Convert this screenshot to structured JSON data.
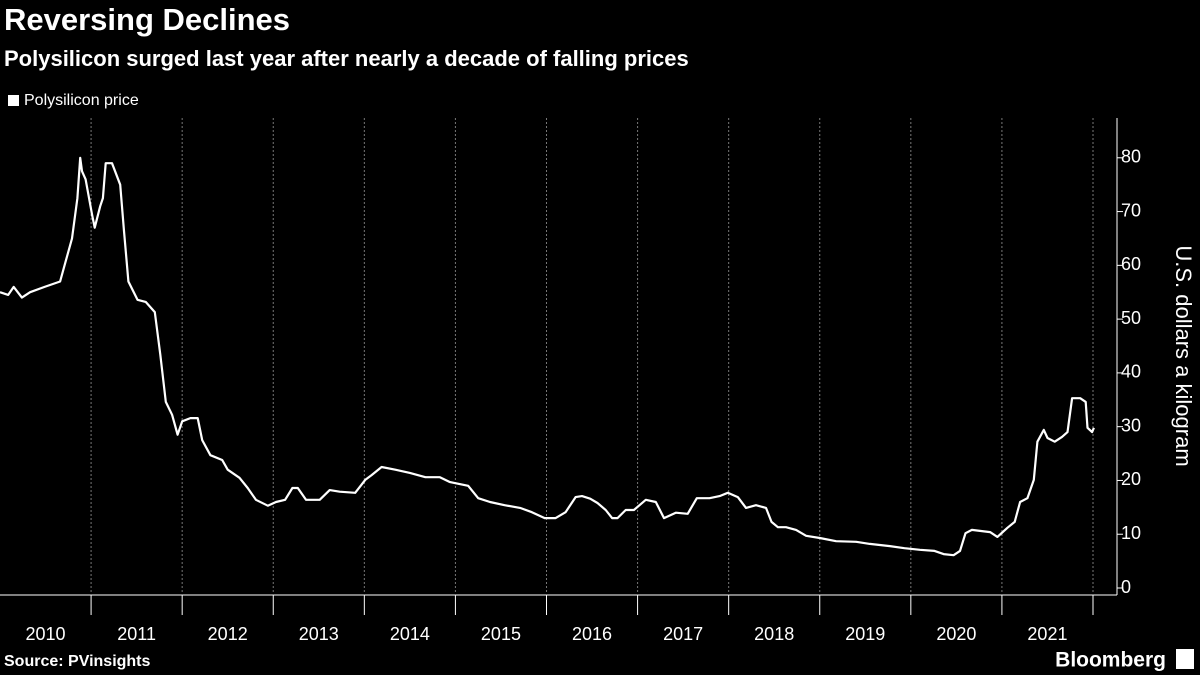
{
  "chart_data": {
    "type": "line",
    "title": "Reversing Declines",
    "subtitle": "Polysilicon surged last year after nearly a decade of falling prices",
    "y_axis_label": "U.S. dollars a kilogram",
    "source": "Source: PVinsights",
    "brand": "Bloomberg",
    "xlim": [
      2010,
      2022
    ],
    "xticks": [
      {
        "value": 2010.5,
        "label": "2010"
      },
      {
        "value": 2011.5,
        "label": "2011"
      },
      {
        "value": 2012.5,
        "label": "2012"
      },
      {
        "value": 2013.5,
        "label": "2013"
      },
      {
        "value": 2014.5,
        "label": "2014"
      },
      {
        "value": 2015.5,
        "label": "2015"
      },
      {
        "value": 2016.5,
        "label": "2016"
      },
      {
        "value": 2017.5,
        "label": "2017"
      },
      {
        "value": 2018.5,
        "label": "2018"
      },
      {
        "value": 2019.5,
        "label": "2019"
      },
      {
        "value": 2020.5,
        "label": "2020"
      },
      {
        "value": 2021.5,
        "label": "2021"
      }
    ],
    "ylim": [
      -1.3,
      87.4
    ],
    "yticks": [
      0,
      10,
      20,
      30,
      40,
      50,
      60,
      70,
      80
    ],
    "grid": true,
    "legend": "top-left",
    "x": [
      2010.0,
      2010.09,
      2010.15,
      2010.24,
      2010.33,
      2010.49,
      2010.66,
      2010.72,
      2010.79,
      2010.85,
      2010.88,
      2010.9,
      2010.94,
      2011.01,
      2011.04,
      2011.1,
      2011.13,
      2011.16,
      2011.23,
      2011.32,
      2011.36,
      2011.41,
      2011.51,
      2011.6,
      2011.7,
      2011.76,
      2011.82,
      2011.89,
      2011.95,
      2012.0,
      2012.09,
      2012.17,
      2012.22,
      2012.31,
      2012.44,
      2012.5,
      2012.63,
      2012.72,
      2012.81,
      2012.94,
      2013.03,
      2013.13,
      2013.21,
      2013.27,
      2013.36,
      2013.51,
      2013.62,
      2013.73,
      2013.9,
      2014.01,
      2014.08,
      2014.19,
      2014.34,
      2014.5,
      2014.67,
      2014.83,
      2014.94,
      2015.14,
      2015.25,
      2015.38,
      2015.54,
      2015.71,
      2015.84,
      2015.98,
      2016.1,
      2016.21,
      2016.32,
      2016.39,
      2016.48,
      2016.56,
      2016.65,
      2016.72,
      2016.78,
      2016.87,
      2016.96,
      2017.09,
      2017.2,
      2017.29,
      2017.42,
      2017.55,
      2017.65,
      2017.79,
      2017.9,
      2017.99,
      2018.1,
      2018.19,
      2018.3,
      2018.41,
      2018.47,
      2018.54,
      2018.63,
      2018.74,
      2018.85,
      2019.0,
      2019.18,
      2019.4,
      2019.55,
      2019.77,
      2019.93,
      2020.1,
      2020.26,
      2020.36,
      2020.47,
      2020.54,
      2020.6,
      2020.67,
      2020.87,
      2020.95,
      2021.06,
      2021.14,
      2021.2,
      2021.28,
      2021.35,
      2021.39,
      2021.46,
      2021.5,
      2021.58,
      2021.66,
      2021.72,
      2021.77,
      2021.86,
      2021.92,
      2021.94,
      2021.99,
      2022.01
    ],
    "series": [
      {
        "name": "Polysilicon price",
        "color": "#ffffff",
        "values": [
          55,
          54.5,
          56,
          54,
          55,
          56,
          57,
          60.7,
          65,
          72.5,
          80,
          77.5,
          76,
          69.5,
          67,
          71,
          72.5,
          79,
          79,
          75,
          66.6,
          57,
          53.6,
          53.2,
          51.3,
          43.4,
          34.6,
          32.2,
          28.5,
          31,
          31.6,
          31.6,
          27.5,
          24.7,
          23.8,
          22,
          20.5,
          18.6,
          16.4,
          15.3,
          16,
          16.4,
          18.6,
          18.6,
          16.4,
          16.4,
          18.2,
          17.9,
          17.7,
          20.1,
          21,
          22.5,
          22,
          21.4,
          20.6,
          20.6,
          19.7,
          19,
          16.7,
          16,
          15.4,
          14.9,
          14.1,
          13,
          13,
          14.1,
          16.9,
          17.1,
          16.6,
          15.8,
          14.5,
          13,
          13,
          14.5,
          14.5,
          16.4,
          16,
          13,
          14,
          13.8,
          16.7,
          16.7,
          17.1,
          17.7,
          16.9,
          14.9,
          15.4,
          14.9,
          12.3,
          11.3,
          11.3,
          10.8,
          9.7,
          9.3,
          8.7,
          8.6,
          8.2,
          7.8,
          7.4,
          7.1,
          6.9,
          6.3,
          6.1,
          6.9,
          10.2,
          10.8,
          10.4,
          9.5,
          11.2,
          12.3,
          16,
          16.7,
          20.1,
          27.2,
          29.4,
          27.9,
          27.2,
          28.1,
          29,
          35.3,
          35.3,
          34.6,
          29.8,
          29,
          29.8
        ]
      }
    ]
  }
}
